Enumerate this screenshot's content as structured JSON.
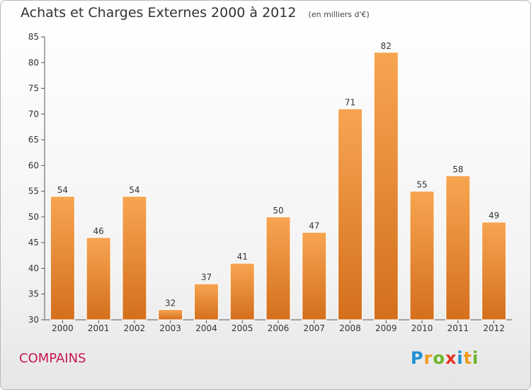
{
  "chart_data": {
    "type": "bar",
    "title": "Achats et Charges Externes 2000 à 2012",
    "subtitle": "(en milliers d'€)",
    "categories": [
      "2000",
      "2001",
      "2002",
      "2003",
      "2004",
      "2005",
      "2006",
      "2007",
      "2008",
      "2009",
      "2010",
      "2011",
      "2012"
    ],
    "values": [
      54,
      46,
      54,
      32,
      37,
      41,
      50,
      47,
      71,
      82,
      55,
      58,
      49
    ],
    "ylim": [
      30,
      85
    ],
    "yticks": [
      30,
      35,
      40,
      45,
      50,
      55,
      60,
      65,
      70,
      75,
      80,
      85
    ],
    "grid": false,
    "legend": "none",
    "bar_color_top": "#f7a552",
    "bar_color_bottom": "#d46f1c",
    "xlabel": "",
    "ylabel": ""
  },
  "footer": {
    "commune": "COMPAINS",
    "brand": "Proxiti",
    "commune_color": "#c8174f"
  }
}
